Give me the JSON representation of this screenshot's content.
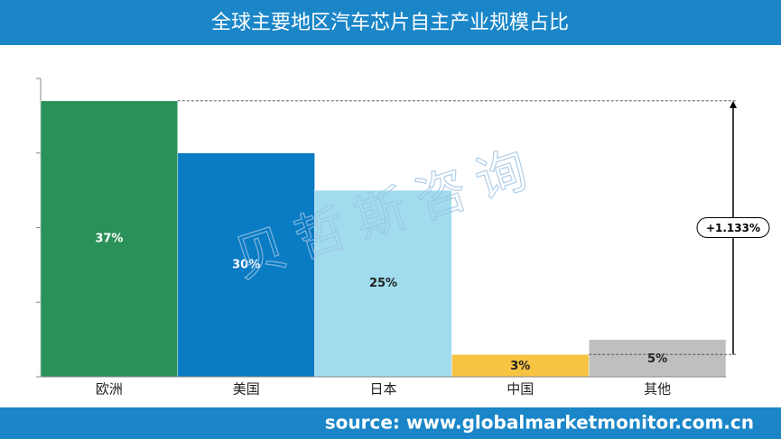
{
  "chart_data": {
    "type": "bar",
    "title": "全球主要地区汽车芯片自主产业规模占比",
    "categories": [
      "欧洲",
      "美国",
      "日本",
      "中国",
      "其他"
    ],
    "values": [
      37,
      30,
      25,
      3,
      5
    ],
    "value_labels": [
      "37%",
      "30%",
      "25%",
      "3%",
      "5%"
    ],
    "colors": [
      "#2a9158",
      "#0a7cc4",
      "#a0dcee",
      "#f6c343",
      "#bfbfbf"
    ],
    "ylim": [
      0,
      40
    ],
    "yticks": [
      0,
      10,
      20,
      30,
      40
    ],
    "annotation": "+1.133%",
    "watermark": "贝哲斯咨询",
    "source": "source: www.globalmarketmonitor.com.cn"
  }
}
